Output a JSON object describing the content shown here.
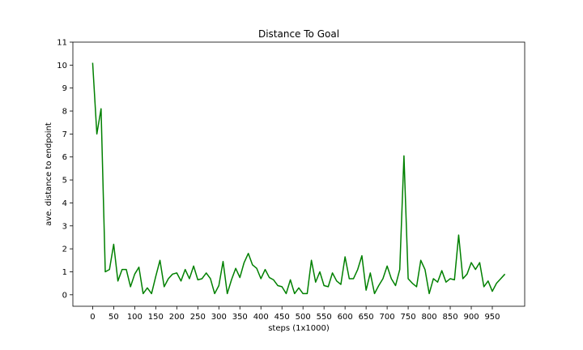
{
  "chart_data": {
    "type": "line",
    "title": "Distance To Goal",
    "xlabel": "steps (1x1000)",
    "ylabel": "ave. distance to endpoint",
    "xlim": [
      -47,
      1027
    ],
    "ylim": [
      -0.5,
      11
    ],
    "xticks": [
      0,
      50,
      100,
      150,
      200,
      250,
      300,
      350,
      400,
      450,
      500,
      550,
      600,
      650,
      700,
      750,
      800,
      850,
      900,
      950
    ],
    "yticks": [
      0,
      1,
      2,
      3,
      4,
      5,
      6,
      7,
      8,
      9,
      10,
      11
    ],
    "grid": false,
    "series": [
      {
        "name": "",
        "color": "#008000",
        "x": [
          0,
          10,
          20,
          30,
          40,
          50,
          60,
          70,
          80,
          90,
          100,
          110,
          120,
          130,
          140,
          150,
          160,
          170,
          180,
          190,
          200,
          210,
          220,
          230,
          240,
          250,
          260,
          270,
          280,
          290,
          300,
          310,
          320,
          330,
          340,
          350,
          360,
          370,
          380,
          390,
          400,
          410,
          420,
          430,
          440,
          450,
          460,
          470,
          480,
          490,
          500,
          510,
          520,
          530,
          540,
          550,
          560,
          570,
          580,
          590,
          600,
          610,
          620,
          630,
          640,
          650,
          660,
          670,
          680,
          690,
          700,
          710,
          720,
          730,
          740,
          750,
          760,
          770,
          780,
          790,
          800,
          810,
          820,
          830,
          840,
          850,
          860,
          870,
          880,
          890,
          900,
          910,
          920,
          930,
          940,
          950,
          960,
          970,
          980
        ],
        "y": [
          10.1,
          7.0,
          8.1,
          1.0,
          1.1,
          2.2,
          0.6,
          1.1,
          1.1,
          0.35,
          0.9,
          1.2,
          0.05,
          0.3,
          0.05,
          0.8,
          1.5,
          0.35,
          0.7,
          0.9,
          0.95,
          0.6,
          1.1,
          0.7,
          1.25,
          0.65,
          0.7,
          0.95,
          0.7,
          0.05,
          0.4,
          1.45,
          0.05,
          0.65,
          1.15,
          0.75,
          1.4,
          1.8,
          1.3,
          1.15,
          0.7,
          1.1,
          0.75,
          0.65,
          0.4,
          0.35,
          0.05,
          0.65,
          0.05,
          0.3,
          0.05,
          0.05,
          1.5,
          0.55,
          1.0,
          0.4,
          0.35,
          0.95,
          0.6,
          0.45,
          1.65,
          0.7,
          0.7,
          1.1,
          1.7,
          0.2,
          0.95,
          0.05,
          0.4,
          0.7,
          1.25,
          0.7,
          0.4,
          1.1,
          6.05,
          0.7,
          0.5,
          0.35,
          1.5,
          1.1,
          0.05,
          0.7,
          0.55,
          1.05,
          0.55,
          0.7,
          0.65,
          2.6,
          0.7,
          0.9,
          1.4,
          1.1,
          1.4,
          0.35,
          0.6,
          0.15,
          0.5,
          0.7,
          0.9
        ]
      }
    ]
  }
}
